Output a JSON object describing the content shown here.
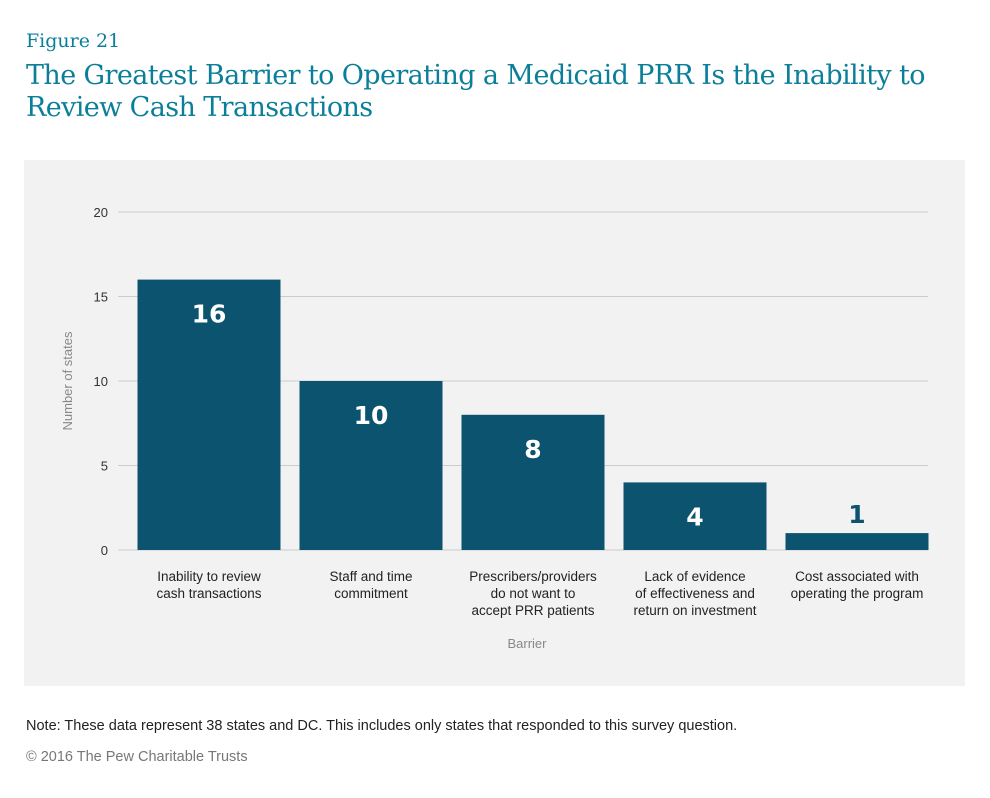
{
  "figure_label": "Figure 21",
  "title": "The Greatest Barrier to Operating a Medicaid PRR Is the Inability to Review Cash Transactions",
  "note": "Note: These data represent 38 states and DC. This includes only states that responded to this survey question.",
  "copyright": "© 2016 The Pew Charitable Trusts",
  "colors": {
    "bar": "#0b536f",
    "title": "#0b7f9a",
    "panel": "#f2f2f2",
    "grid": "#cccccc"
  },
  "chart_data": {
    "type": "bar",
    "categories": [
      [
        "Inability  to review",
        "cash transactions"
      ],
      [
        "Staff and time",
        "commitment"
      ],
      [
        "Prescribers/providers",
        "do not want to",
        "accept PRR patients"
      ],
      [
        "Lack of evidence",
        "of effectiveness and",
        "return on investment"
      ],
      [
        "Cost associated with",
        "operating the program"
      ]
    ],
    "values": [
      16,
      10,
      8,
      4,
      1
    ],
    "data_labels": [
      "16",
      "10",
      "8",
      "4",
      "1"
    ],
    "xlabel": "Barrier",
    "ylabel": "Number of states",
    "ylim": [
      0,
      20
    ],
    "yticks": [
      "0",
      "5",
      "10",
      "15",
      "20"
    ],
    "grid": true
  }
}
